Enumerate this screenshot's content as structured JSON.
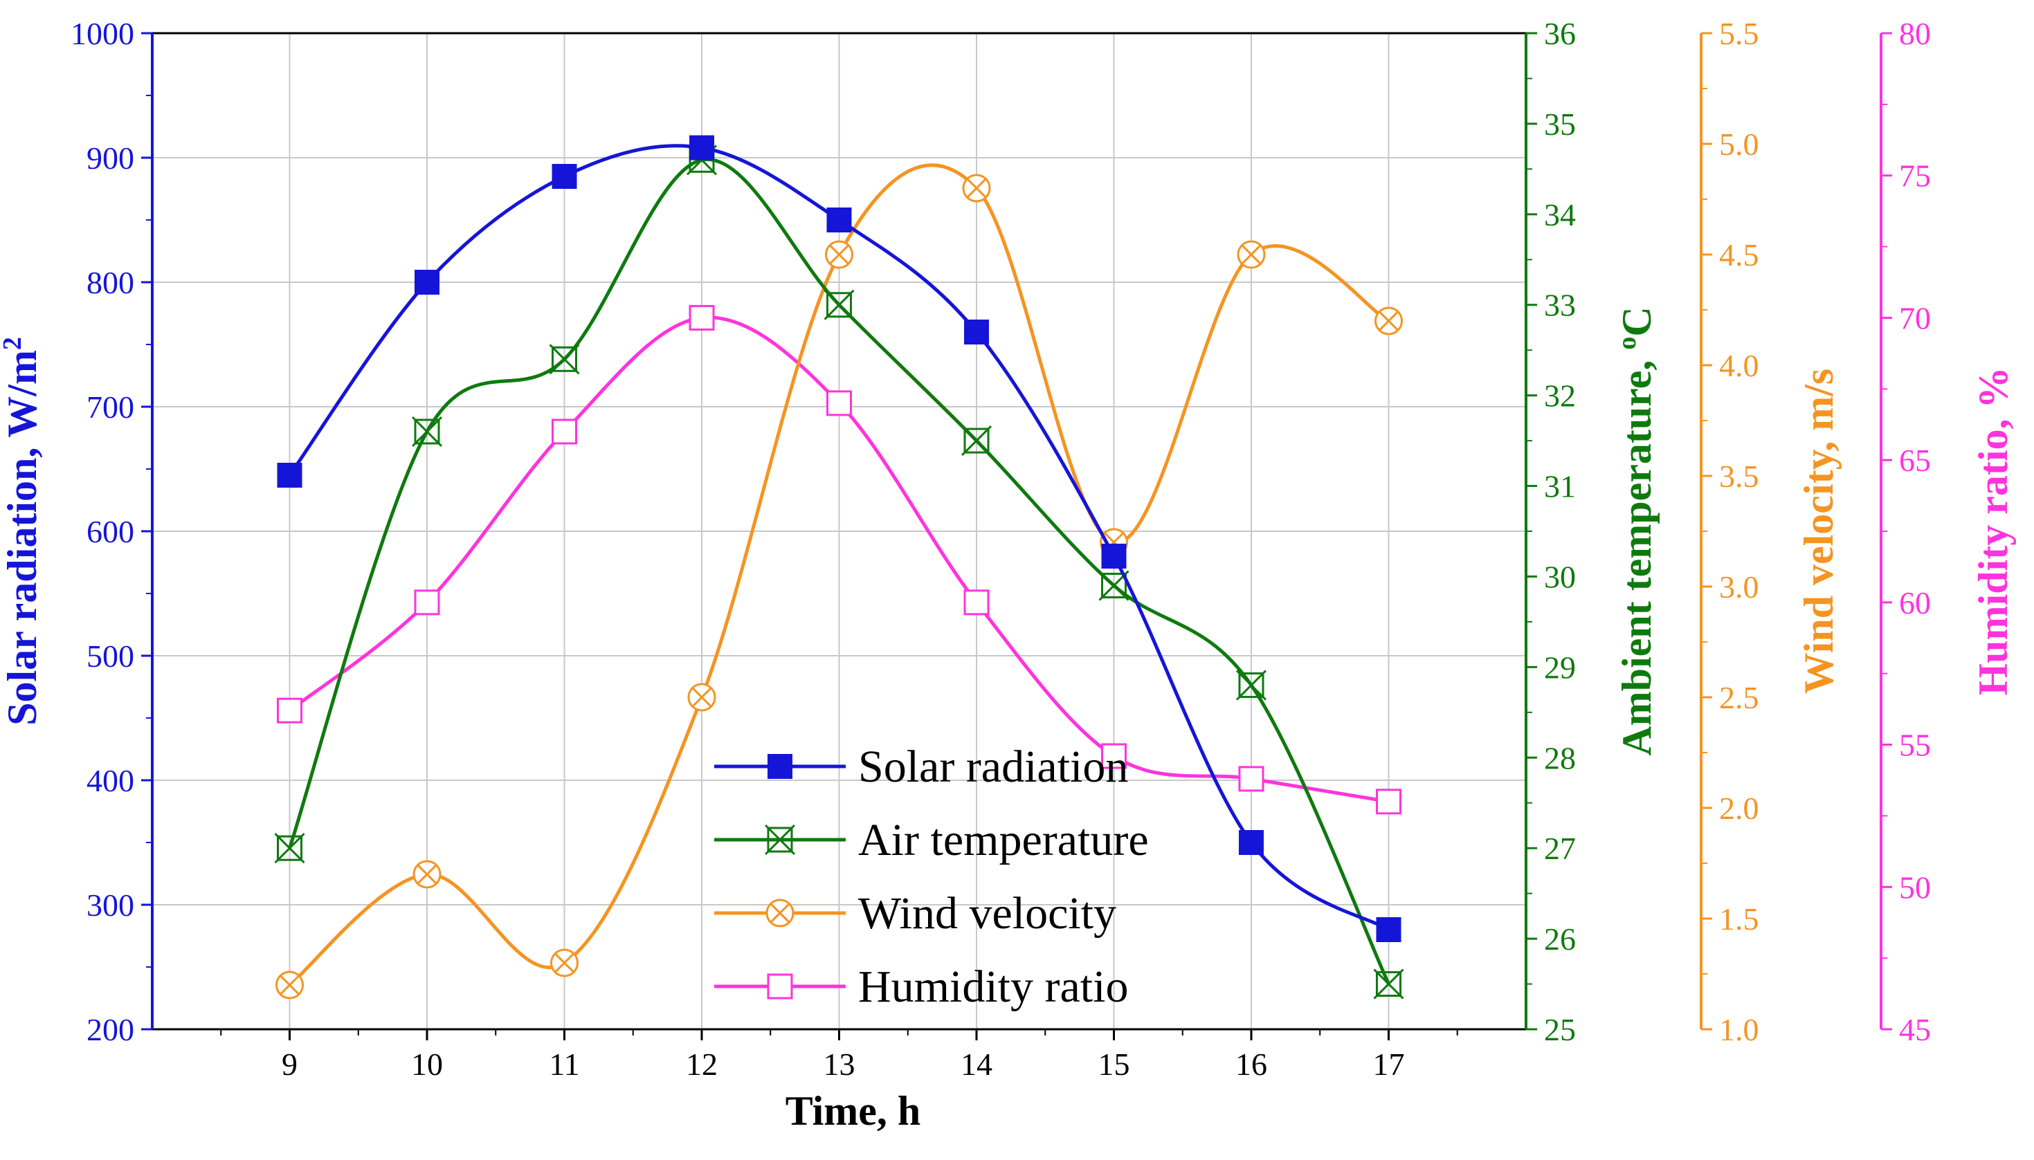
{
  "colors": {
    "solar": "#1515d8",
    "temperature": "#0e7a0e",
    "wind": "#f59422",
    "humidity": "#ff33dd",
    "grid": "#c8c8c8",
    "frame": "#000000"
  },
  "chart_data": {
    "type": "line",
    "x": [
      9,
      10,
      11,
      12,
      13,
      14,
      15,
      16,
      17
    ],
    "xlabel": "Time, h",
    "xlim": [
      8,
      18
    ],
    "x_ticks": [
      "9",
      "10",
      "11",
      "12",
      "13",
      "14",
      "15",
      "16",
      "17"
    ],
    "grid": true,
    "smooth": true,
    "legend_position": "bottom-center",
    "axes": [
      {
        "id": "solar",
        "label": "Solar radiation, W/m",
        "label_sup": "2",
        "range": [
          200,
          1000
        ],
        "ticks": [
          "200",
          "300",
          "400",
          "500",
          "600",
          "700",
          "800",
          "900",
          "1000"
        ],
        "color_key": "solar",
        "side": "left"
      },
      {
        "id": "temp",
        "label": "Ambient temperature, ",
        "label_sup": "o",
        "label_suffix": "C",
        "range": [
          25,
          36
        ],
        "ticks": [
          "25",
          "26",
          "27",
          "28",
          "29",
          "30",
          "31",
          "32",
          "33",
          "34",
          "35",
          "36"
        ],
        "color_key": "temperature",
        "side": "right"
      },
      {
        "id": "wind",
        "label": "Wind velocity, m/s",
        "range": [
          1.0,
          5.5
        ],
        "ticks": [
          "1.0",
          "1.5",
          "2.0",
          "2.5",
          "3.0",
          "3.5",
          "4.0",
          "4.5",
          "5.0",
          "5.5"
        ],
        "color_key": "wind",
        "side": "right"
      },
      {
        "id": "hum",
        "label": "Humidity ratio, %",
        "range": [
          45,
          80
        ],
        "ticks": [
          "45",
          "50",
          "55",
          "60",
          "65",
          "70",
          "75",
          "80"
        ],
        "color_key": "humidity",
        "side": "right"
      }
    ],
    "series": [
      {
        "name": "Solar radiation",
        "axis": "solar",
        "marker": "filled-square",
        "color_key": "solar",
        "values": [
          645,
          800,
          885,
          908,
          850,
          760,
          580,
          350,
          280
        ]
      },
      {
        "name": "Air temperature",
        "axis": "temp",
        "marker": "crossed-square",
        "color_key": "temperature",
        "values": [
          27.0,
          31.6,
          32.4,
          34.6,
          33.0,
          31.5,
          29.9,
          28.8,
          25.5
        ]
      },
      {
        "name": "Wind velocity",
        "axis": "wind",
        "marker": "crossed-circle",
        "color_key": "wind",
        "values": [
          1.2,
          1.7,
          1.3,
          2.5,
          4.5,
          4.8,
          3.2,
          4.5,
          4.2
        ]
      },
      {
        "name": "Humidity ratio",
        "axis": "hum",
        "marker": "open-square",
        "color_key": "humidity",
        "values": [
          56.2,
          60.0,
          66.0,
          70.0,
          67.0,
          60.0,
          54.6,
          53.8,
          53.0
        ]
      }
    ]
  }
}
